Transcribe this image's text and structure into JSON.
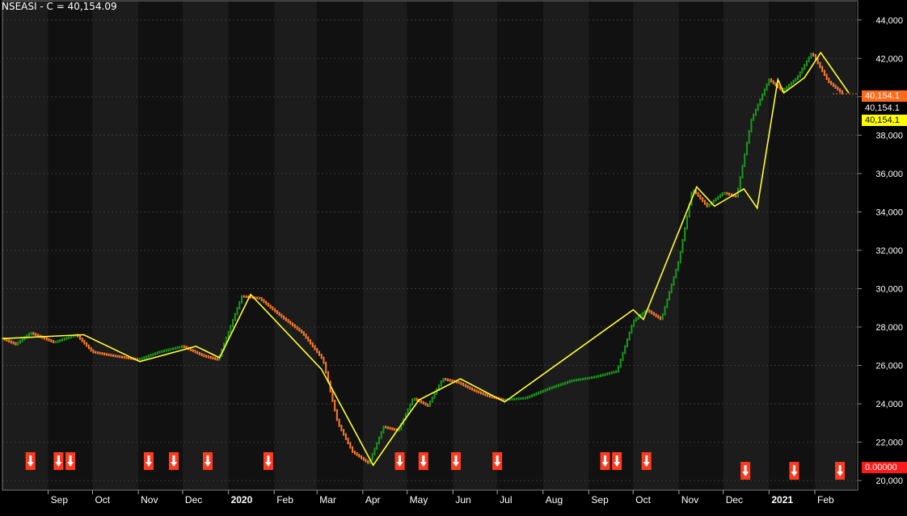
{
  "title": "NSEASI - C = 40,154.09",
  "price_labels": {
    "close_orange": "40,154.1",
    "close_white": "40,154.1",
    "close_yellow": "40,154.1",
    "indicator_red": "0.00000"
  },
  "colors": {
    "background": "#000000",
    "plot_bg_a": "#1c1c1c",
    "plot_bg_b": "#111111",
    "up_bar": "#1a9a1a",
    "down_bar": "#ff7a2a",
    "zigzag": "#ffff33",
    "signal_arrow_bg": "#ff3b1f",
    "grid": "#3a3a3a"
  },
  "chart_data": {
    "type": "line",
    "title": "NSEASI - C = 40,154.09",
    "ylim": [
      19500,
      45000
    ],
    "y_ticks": [
      "20,000",
      "22,000",
      "24,000",
      "26,000",
      "28,000",
      "30,000",
      "32,000",
      "34,000",
      "36,000",
      "38,000",
      "40,000",
      "42,000",
      "44,000"
    ],
    "x_tick_labels": [
      "Sep",
      "Oct",
      "Nov",
      "Dec",
      "2020",
      "Feb",
      "Mar",
      "Apr",
      "May",
      "Jun",
      "Jul",
      "Aug",
      "Sep",
      "Oct",
      "Nov",
      "Dec",
      "2021",
      "Feb"
    ],
    "grid": true,
    "series": [
      {
        "name": "",
        "x": [
          "2019-08-01",
          "2019-08-10",
          "2019-08-20",
          "2019-09-05",
          "2019-09-20",
          "2019-10-01",
          "2019-10-15",
          "2019-11-01",
          "2019-11-15",
          "2019-12-01",
          "2019-12-15",
          "2019-12-25",
          "2020-01-10",
          "2020-01-22",
          "2020-02-05",
          "2020-02-20",
          "2020-03-05",
          "2020-03-15",
          "2020-03-25",
          "2020-04-05",
          "2020-04-15",
          "2020-04-25",
          "2020-05-05",
          "2020-05-15",
          "2020-05-25",
          "2020-06-05",
          "2020-06-15",
          "2020-06-25",
          "2020-07-05",
          "2020-07-20",
          "2020-08-05",
          "2020-08-20",
          "2020-09-05",
          "2020-09-20",
          "2020-10-01",
          "2020-10-10",
          "2020-10-20",
          "2020-11-01",
          "2020-11-10",
          "2020-11-20",
          "2020-12-01",
          "2020-12-10",
          "2020-12-20",
          "2021-01-01",
          "2021-01-10",
          "2021-01-20",
          "2021-01-30",
          "2021-02-10",
          "2021-02-20"
        ],
        "values": [
          27400,
          27100,
          27700,
          27200,
          27600,
          26700,
          26500,
          26300,
          26700,
          27000,
          26500,
          26300,
          29600,
          29500,
          28600,
          27700,
          26300,
          23000,
          21500,
          20900,
          22800,
          22600,
          24300,
          23900,
          25300,
          25100,
          24700,
          24400,
          24200,
          24300,
          24800,
          25200,
          25400,
          25700,
          28300,
          28900,
          28400,
          31500,
          35200,
          34300,
          35000,
          34800,
          38800,
          40900,
          40300,
          41000,
          42300,
          40800,
          40154
        ]
      },
      {
        "name": "",
        "x": [
          "2019-08-01",
          "2019-09-25",
          "2019-11-02",
          "2019-12-10",
          "2019-12-26",
          "2020-01-16",
          "2020-03-04",
          "2020-04-08",
          "2020-04-25",
          "2020-05-09",
          "2020-06-06",
          "2020-07-06",
          "2020-10-01",
          "2020-10-08",
          "2020-11-13",
          "2020-11-25",
          "2020-12-15",
          "2020-12-24",
          "2021-01-07",
          "2021-01-11",
          "2021-01-25",
          "2021-02-05",
          "2021-02-24"
        ],
        "values": [
          27400,
          27600,
          26200,
          27000,
          26400,
          29700,
          25800,
          20800,
          22700,
          24200,
          25300,
          24100,
          28900,
          28400,
          35300,
          34300,
          35200,
          34200,
          40900,
          40200,
          41000,
          42300,
          40200
        ]
      }
    ],
    "signals": {
      "type": "sell-arrow",
      "indicator_value": 0.0,
      "dates": [
        "2019-08-20",
        "2019-09-08",
        "2019-09-16",
        "2019-11-08",
        "2019-11-25",
        "2019-12-18",
        "2020-01-28",
        "2020-04-26",
        "2020-05-12",
        "2020-06-03",
        "2020-07-01",
        "2020-09-12",
        "2020-09-20",
        "2020-10-10",
        "2020-12-16",
        "2021-01-18",
        "2021-02-18"
      ]
    }
  }
}
